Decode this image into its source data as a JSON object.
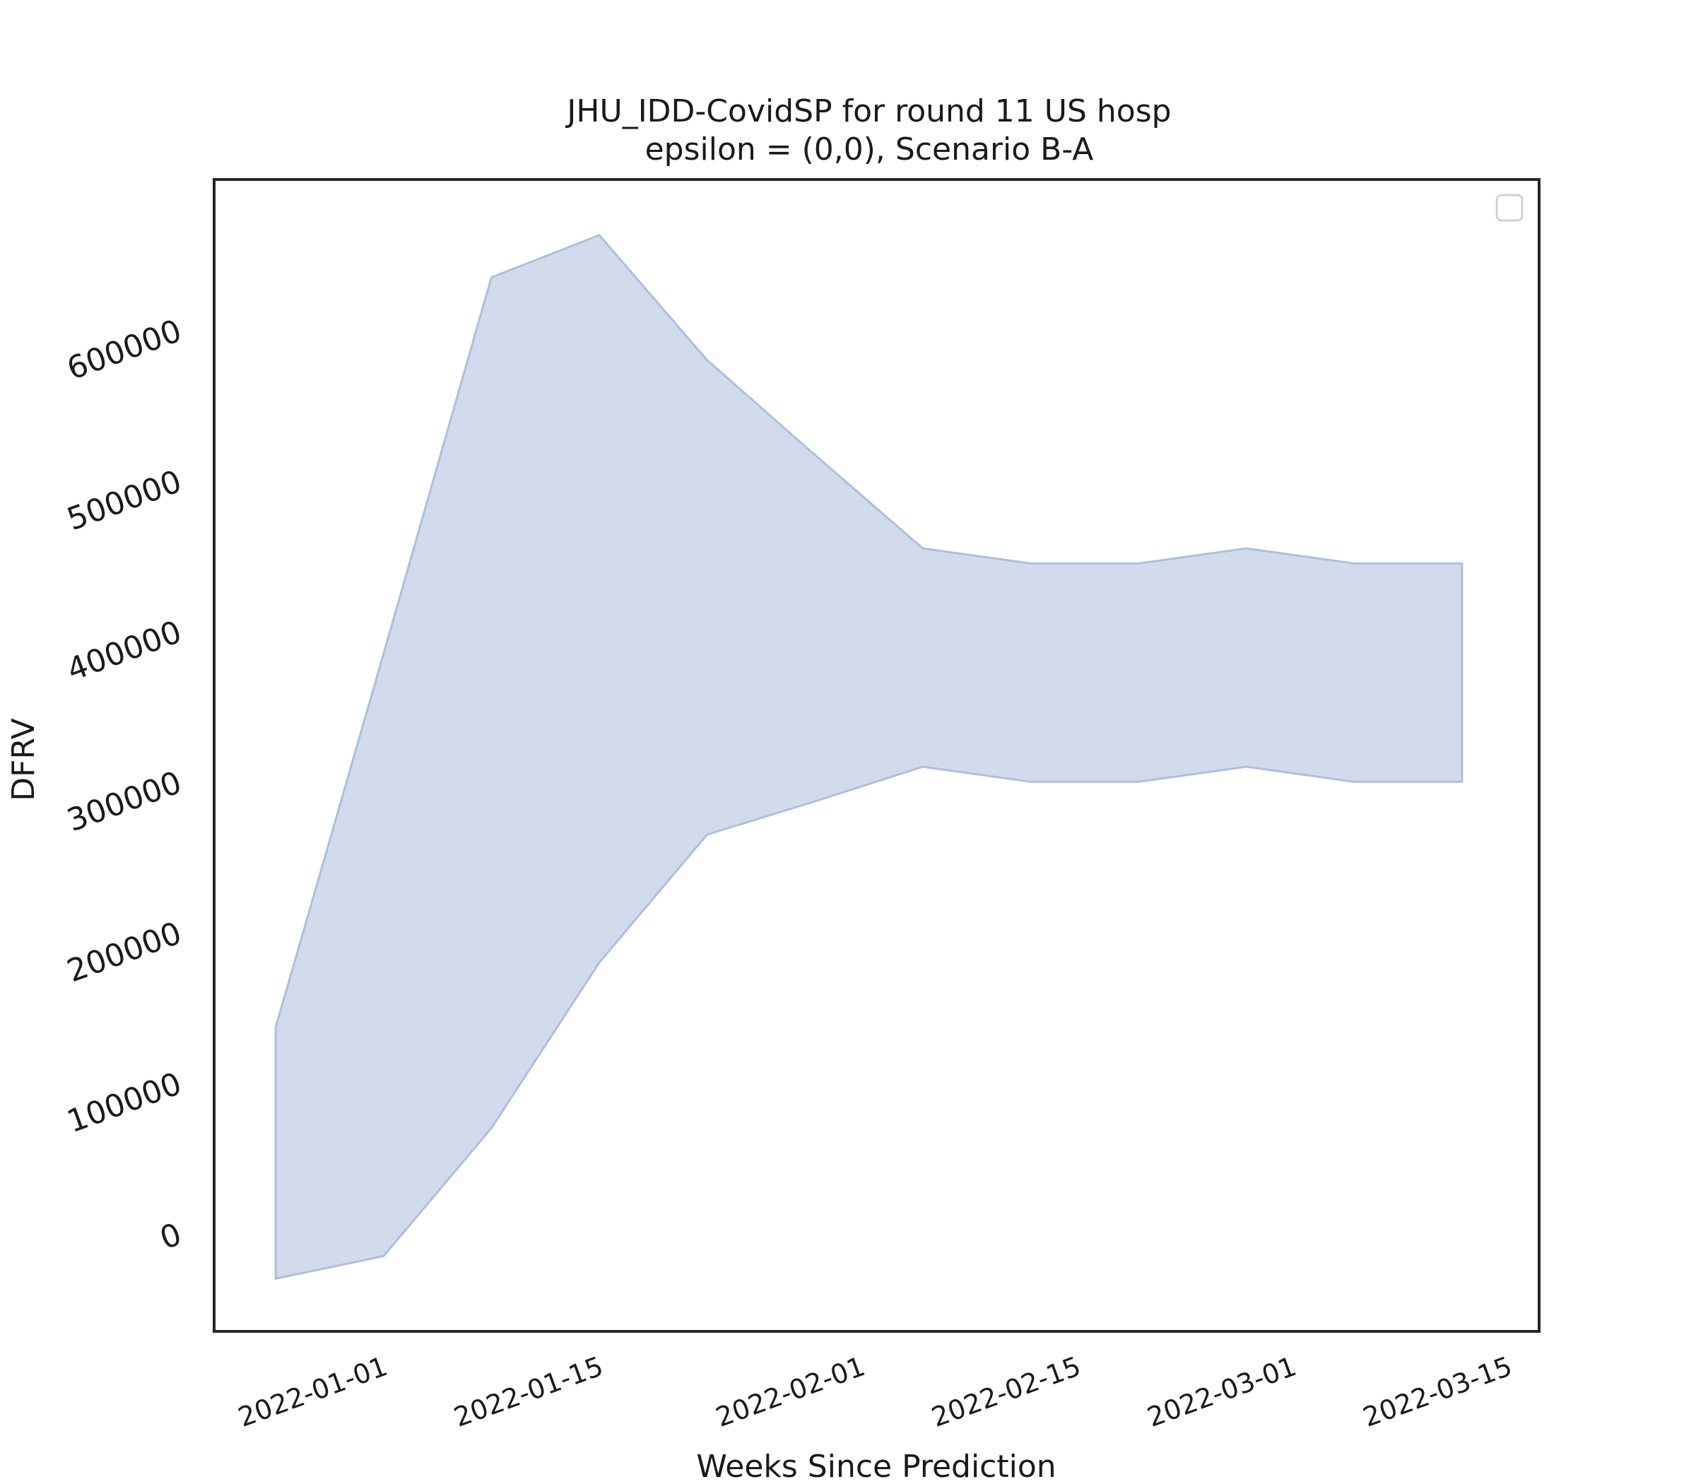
{
  "chart_data": {
    "type": "area",
    "title": "JHU_IDD-CovidSP for round 11 US hosp",
    "subtitle": "epsilon = (0,0), Scenario B-A",
    "xlabel": "Weeks Since Prediction",
    "ylabel": "DFRV",
    "x": [
      "2021-12-25",
      "2022-01-01",
      "2022-01-08",
      "2022-01-15",
      "2022-01-22",
      "2022-01-29",
      "2022-02-05",
      "2022-02-12",
      "2022-02-19",
      "2022-02-26",
      "2022-03-05",
      "2022-03-12"
    ],
    "series": [
      {
        "lower": [
          -30000,
          -15000,
          70000,
          180000,
          265000,
          287000,
          310000,
          300000,
          300000,
          310000,
          300000,
          300000
        ],
        "upper": [
          137000,
          385000,
          635000,
          663000,
          580000,
          517000,
          455000,
          445000,
          445000,
          455000,
          445000,
          445000
        ]
      }
    ],
    "xticks": [
      "2022-01-01",
      "2022-01-15",
      "2022-02-01",
      "2022-02-15",
      "2022-03-01",
      "2022-03-15"
    ],
    "yticks": [
      0,
      100000,
      200000,
      300000,
      400000,
      500000,
      600000
    ],
    "xlim": [
      "2021-12-21",
      "2022-03-17"
    ],
    "ylim": [
      -65000,
      700000
    ],
    "grid": false,
    "legend": "top-right (empty)",
    "fill_color": "#d1dbeb",
    "edge_color": "#aebfdc"
  }
}
